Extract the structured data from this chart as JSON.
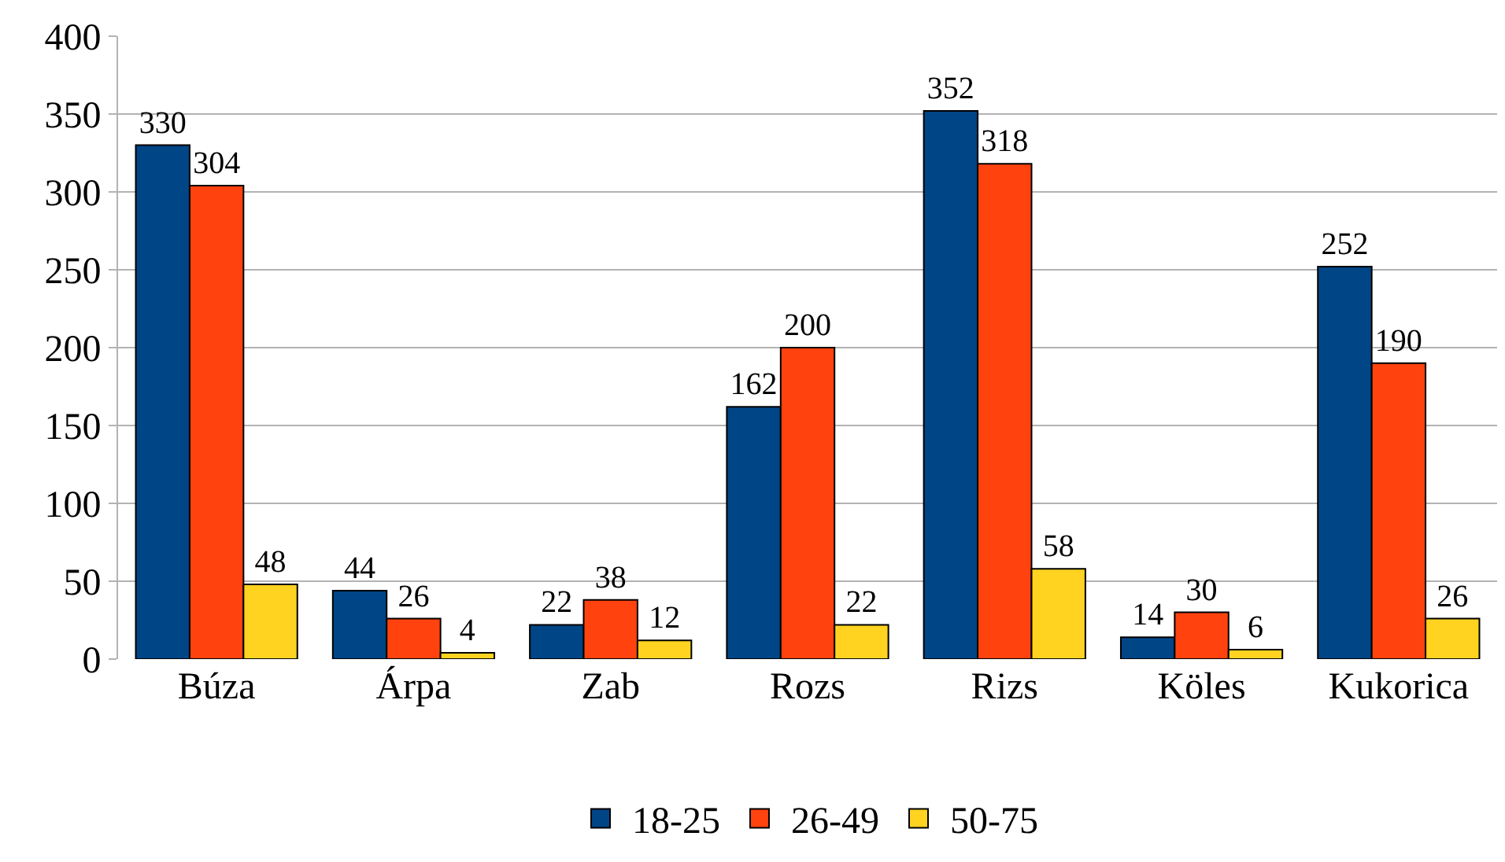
{
  "chart_data": {
    "type": "bar",
    "categories": [
      "Búza",
      "Árpa",
      "Zab",
      "Rozs",
      "Rizs",
      "Köles",
      "Kukorica"
    ],
    "series": [
      {
        "name": "18-25",
        "color": "#004586",
        "values": [
          330,
          44,
          22,
          162,
          352,
          14,
          252
        ]
      },
      {
        "name": "26-49",
        "color": "#ff420e",
        "values": [
          304,
          26,
          38,
          200,
          318,
          30,
          190
        ]
      },
      {
        "name": "50-75",
        "color": "#ffd320",
        "values": [
          48,
          4,
          12,
          22,
          58,
          6,
          26
        ]
      }
    ],
    "ylim": [
      0,
      400
    ],
    "yticks": [
      0,
      50,
      100,
      150,
      200,
      250,
      300,
      350,
      400
    ],
    "grid": "y",
    "legend": "bottom",
    "data_labels": true
  }
}
